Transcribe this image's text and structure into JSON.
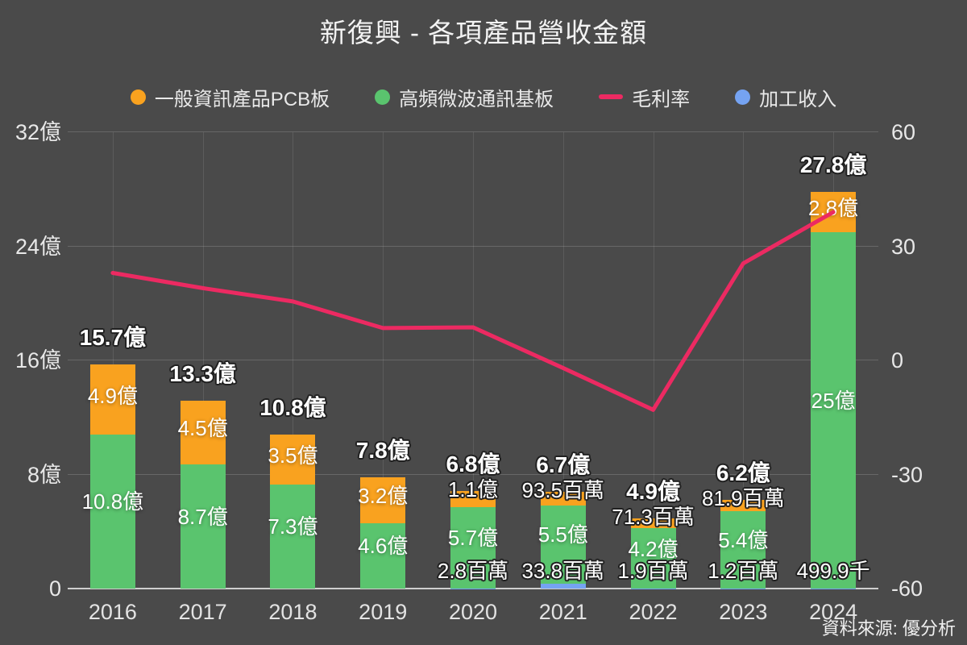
{
  "title": "新復興 - 各項產品營收金額",
  "source_note": "資料來源: 優分析",
  "colors": {
    "background": "#4a4a4a",
    "pcb_orange": "#f9a21f",
    "substrate_green": "#5ac46e",
    "processing_blue": "#75a3f2",
    "margin_pink": "#ec2a62",
    "axis_line": "#cfcfcf",
    "tick_text": "#e8e8e8"
  },
  "legend": [
    {
      "label": "一般資訊產品PCB板",
      "marker": "dot",
      "color_key": "pcb_orange"
    },
    {
      "label": "高頻微波通訊基板",
      "marker": "dot",
      "color_key": "substrate_green"
    },
    {
      "label": "毛利率",
      "marker": "line",
      "color_key": "margin_pink"
    },
    {
      "label": "加工收入",
      "marker": "dot",
      "color_key": "processing_blue"
    }
  ],
  "axes": {
    "left": {
      "ticks": [
        {
          "value": 32,
          "label": "32億"
        },
        {
          "value": 24,
          "label": "24億"
        },
        {
          "value": 16,
          "label": "16億"
        },
        {
          "value": 8,
          "label": "8億"
        },
        {
          "value": 0,
          "label": "0"
        }
      ]
    },
    "right": {
      "ticks": [
        {
          "value": 60,
          "label": "60"
        },
        {
          "value": 30,
          "label": "30"
        },
        {
          "value": 0,
          "label": "0"
        },
        {
          "value": -30,
          "label": "-30"
        },
        {
          "value": -60,
          "label": "-60"
        }
      ]
    }
  },
  "chart_data": {
    "type": "bar",
    "subtype": "stacked-bars-with-line",
    "categories": [
      "2016",
      "2017",
      "2018",
      "2019",
      "2020",
      "2021",
      "2022",
      "2023",
      "2024"
    ],
    "left_axis_range_yi": [
      0,
      32
    ],
    "right_axis_range_pct": [
      -60,
      60
    ],
    "grid": true,
    "legend_position": "top",
    "series": [
      {
        "key": "pcb",
        "name": "一般資訊產品PCB板",
        "type": "bar",
        "color_key": "pcb_orange",
        "values_yi": [
          4.9,
          4.5,
          3.5,
          3.2,
          1.1,
          0.935,
          0.713,
          0.819,
          2.8
        ],
        "labels": [
          "4.9億",
          "4.5億",
          "3.5億",
          "3.2億",
          "1.1億",
          "93.5百萬",
          "71.3百萬",
          "81.9百萬",
          "2.8億"
        ]
      },
      {
        "key": "substrate",
        "name": "高頻微波通訊基板",
        "type": "bar",
        "color_key": "substrate_green",
        "values_yi": [
          10.8,
          8.7,
          7.3,
          4.6,
          5.7,
          5.5,
          4.2,
          5.4,
          25
        ],
        "labels": [
          "10.8億",
          "8.7億",
          "7.3億",
          "4.6億",
          "5.7億",
          "5.5億",
          "4.2億",
          "5.4億",
          "25億"
        ]
      },
      {
        "key": "processing",
        "name": "加工收入",
        "type": "bar",
        "color_key": "processing_blue",
        "values_yi": [
          0,
          0,
          0,
          0,
          0.028,
          0.338,
          0.019,
          0.012,
          0.005
        ],
        "labels": [
          "",
          "",
          "",
          "",
          "2.8百萬",
          "33.8百萬",
          "1.9百萬",
          "1.2百萬",
          "499.9千"
        ]
      },
      {
        "key": "gross_margin",
        "name": "毛利率",
        "type": "line",
        "axis": "right",
        "color_key": "margin_pink",
        "values_pct": [
          23,
          19,
          15.5,
          8.5,
          8.7,
          -2,
          -13,
          25.5,
          39
        ]
      }
    ],
    "totals": {
      "values_yi": [
        15.7,
        13.3,
        10.8,
        7.8,
        6.8,
        6.7,
        4.9,
        6.2,
        27.8
      ],
      "labels": [
        "15.7億",
        "13.3億",
        "10.8億",
        "7.8億",
        "6.8億",
        "6.7億",
        "4.9億",
        "6.2億",
        "27.8億"
      ]
    }
  }
}
